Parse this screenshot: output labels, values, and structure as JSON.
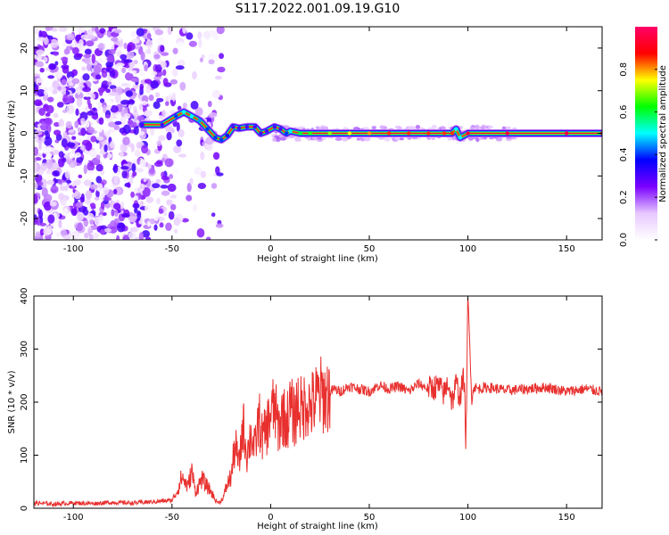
{
  "figure": {
    "title": "S117.2022.001.09.19.G10"
  },
  "chart_data": [
    {
      "type": "heatmap",
      "title": "S117.2022.001.09.19.G10",
      "xlabel": "Height of straight line (km)",
      "ylabel": "Frequency (Hz)",
      "xlim": [
        -120,
        168
      ],
      "ylim": [
        -25,
        25
      ],
      "x_ticks": [
        -100,
        -50,
        0,
        50,
        100,
        150
      ],
      "y_ticks": [
        -20,
        -10,
        0,
        10,
        20
      ],
      "colorbar": {
        "label": "Normalized spectral amplitude",
        "range": [
          0.0,
          1.0
        ],
        "ticks": [
          0.0,
          0.2,
          0.4,
          0.6,
          0.8
        ],
        "colors": [
          "#ffffff",
          "#e7c7ff",
          "#7a00ff",
          "#0000ff",
          "#00ffff",
          "#00ff00",
          "#ffff00",
          "#ff0000",
          "#ff0066"
        ]
      },
      "ridge_x": [
        -65,
        -55,
        -48,
        -44,
        -40,
        -36,
        -32,
        -28,
        -25,
        -22,
        -19,
        -16,
        -12,
        -8,
        -5,
        -2,
        2,
        5,
        8,
        10,
        15,
        20,
        30,
        40,
        50,
        60,
        70,
        80,
        88,
        92,
        94,
        96,
        100,
        120,
        150,
        168
      ],
      "ridge_y": [
        2,
        2,
        4,
        5,
        4,
        3,
        1,
        -1,
        -1.5,
        -0.5,
        1.5,
        1.2,
        1.5,
        1.5,
        0,
        0.5,
        1.5,
        1,
        0,
        0.5,
        0,
        0,
        0,
        0,
        0,
        0,
        0,
        0,
        0,
        0,
        1,
        -1,
        0,
        0,
        0,
        0
      ],
      "ridge_amplitude": [
        0.3,
        0.3,
        0.4,
        0.5,
        0.5,
        0.45,
        0.4,
        0.4,
        0.4,
        0.35,
        0.3,
        0.3,
        0.3,
        0.3,
        0.3,
        0.3,
        0.3,
        0.3,
        0.4,
        0.5,
        0.6,
        0.65,
        0.7,
        0.75,
        0.8,
        0.85,
        0.85,
        0.85,
        0.85,
        0.85,
        0.5,
        0.5,
        0.95,
        0.95,
        0.95,
        0.95
      ]
    },
    {
      "type": "line",
      "xlabel": "Height of straight line (km)",
      "ylabel": "SNR (10 * v/v)",
      "xlim": [
        -120,
        168
      ],
      "ylim": [
        0,
        400
      ],
      "x_ticks": [
        -100,
        -50,
        0,
        50,
        100,
        150
      ],
      "y_ticks": [
        0,
        100,
        200,
        300,
        400
      ],
      "color": "#e8302e",
      "x": [
        -120,
        -110,
        -100,
        -90,
        -80,
        -70,
        -60,
        -50,
        -47,
        -45,
        -42,
        -40,
        -38,
        -35,
        -32,
        -30,
        -28,
        -26,
        -24,
        -22,
        -20,
        -18,
        -16,
        -14,
        -12,
        -10,
        -8,
        -6,
        -4,
        -2,
        0,
        2,
        4,
        6,
        8,
        10,
        12,
        14,
        16,
        18,
        20,
        22,
        25,
        28,
        32,
        35,
        40,
        45,
        50,
        55,
        60,
        65,
        70,
        75,
        80,
        85,
        88,
        90,
        92,
        94,
        96,
        98,
        99,
        100,
        101,
        102,
        103,
        105,
        110,
        120,
        130,
        140,
        150,
        160,
        168
      ],
      "y": [
        10,
        8,
        10,
        9,
        11,
        10,
        12,
        15,
        35,
        60,
        40,
        70,
        30,
        55,
        40,
        30,
        15,
        10,
        20,
        45,
        60,
        120,
        80,
        160,
        100,
        140,
        110,
        170,
        130,
        150,
        180,
        190,
        150,
        180,
        160,
        190,
        170,
        200,
        180,
        205,
        190,
        200,
        215,
        210,
        225,
        220,
        230,
        225,
        220,
        232,
        225,
        230,
        220,
        235,
        225,
        230,
        215,
        240,
        200,
        235,
        210,
        250,
        120,
        400,
        300,
        200,
        230,
        225,
        228,
        222,
        225,
        228,
        220,
        225,
        220
      ]
    }
  ]
}
